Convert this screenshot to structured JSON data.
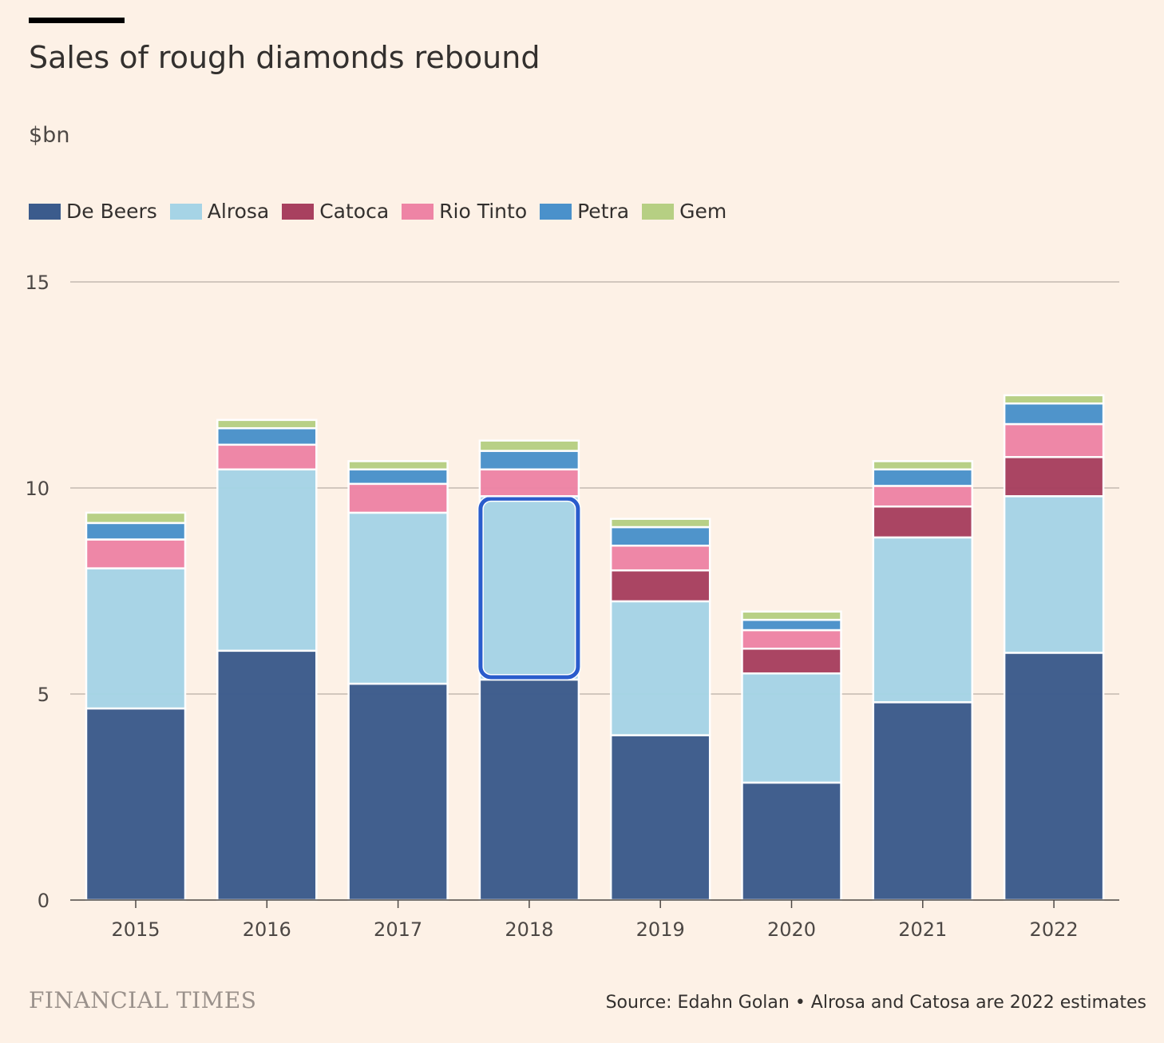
{
  "title": "Sales of rough diamonds rebound",
  "unit": "$bn",
  "brand": "FINANCIAL TIMES",
  "source": "Source: Edahn Golan • Alrosa and Catosa are 2022 estimates",
  "colors": {
    "De Beers": "#3b5b8c",
    "Alrosa": "#a6d4e6",
    "Catoca": "#a8405f",
    "Rio Tinto": "#ee84a5",
    "Petra": "#4a91cb",
    "Gem": "#b6cf83",
    "highlight": "#2a5ccc",
    "grid": "#c3b9b1",
    "axis": "#4d4845"
  },
  "chart_data": {
    "type": "bar",
    "stacked": true,
    "title": "Sales of rough diamonds rebound",
    "ylabel": "$bn",
    "xlabel": "",
    "ylim": [
      0,
      15
    ],
    "yticks": [
      0,
      5,
      10,
      15
    ],
    "grid": true,
    "legend_position": "top-left",
    "categories": [
      "2015",
      "2016",
      "2017",
      "2018",
      "2019",
      "2020",
      "2021",
      "2022"
    ],
    "series": [
      {
        "name": "De Beers",
        "values": [
          4.65,
          6.05,
          5.25,
          5.35,
          4.0,
          2.85,
          4.8,
          6.0
        ]
      },
      {
        "name": "Alrosa",
        "values": [
          3.4,
          4.4,
          4.15,
          4.45,
          3.25,
          2.65,
          4.0,
          3.8
        ]
      },
      {
        "name": "Catoca",
        "values": [
          0,
          0,
          0,
          0,
          0.75,
          0.6,
          0.75,
          0.95
        ]
      },
      {
        "name": "Rio Tinto",
        "values": [
          0.7,
          0.6,
          0.7,
          0.65,
          0.6,
          0.45,
          0.5,
          0.8
        ]
      },
      {
        "name": "Petra",
        "values": [
          0.4,
          0.4,
          0.35,
          0.45,
          0.45,
          0.25,
          0.4,
          0.5
        ]
      },
      {
        "name": "Gem",
        "values": [
          0.25,
          0.2,
          0.2,
          0.25,
          0.2,
          0.2,
          0.2,
          0.2
        ]
      }
    ],
    "highlight": {
      "category": "2018",
      "series": "Alrosa"
    }
  }
}
